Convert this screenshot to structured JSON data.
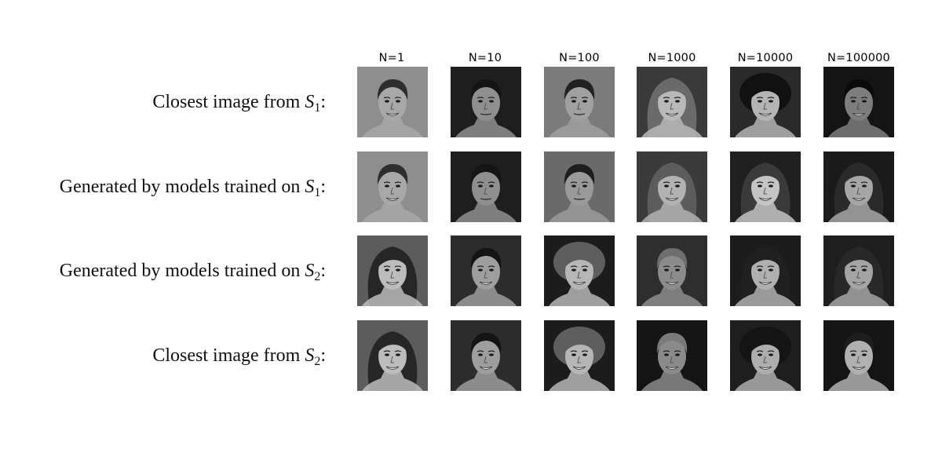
{
  "columns": [
    "N=1",
    "N=10",
    "N=100",
    "N=1000",
    "N=10000",
    "N=100000"
  ],
  "rows": [
    {
      "label": "Closest image from ",
      "set": "S",
      "sub": "1",
      "suffix": ":"
    },
    {
      "label": "Generated by models trained on ",
      "set": "S",
      "sub": "1",
      "suffix": ":"
    },
    {
      "label": "Generated by models trained on ",
      "set": "S",
      "sub": "2",
      "suffix": ":"
    },
    {
      "label": "Closest image from ",
      "set": "S",
      "sub": "2",
      "suffix": ":"
    }
  ],
  "faces": [
    [
      {
        "bg": "#8e8e8e",
        "hair": "#2e2e2e",
        "skin": "#a8a8a8",
        "hair_style": "short",
        "smile": true,
        "icon": "face-portrait-icon"
      },
      {
        "bg": "#1e1e1e",
        "hair": "#151515",
        "skin": "#8f8f8f",
        "hair_style": "short",
        "smile": false,
        "icon": "face-portrait-icon"
      },
      {
        "bg": "#7b7b7b",
        "hair": "#222222",
        "skin": "#a0a0a0",
        "hair_style": "short",
        "smile": false,
        "icon": "face-portrait-icon"
      },
      {
        "bg": "#3a3a3a",
        "hair": "#6a6a6a",
        "skin": "#b9b9b9",
        "hair_style": "long",
        "smile": true,
        "icon": "face-portrait-icon"
      },
      {
        "bg": "#2a2a2a",
        "hair": "#111111",
        "skin": "#b4b4b4",
        "hair_style": "curly",
        "smile": true,
        "icon": "face-portrait-icon"
      },
      {
        "bg": "#141414",
        "hair": "#0a0a0a",
        "skin": "#7d7d7d",
        "hair_style": "short",
        "smile": true,
        "icon": "face-portrait-icon"
      }
    ],
    [
      {
        "bg": "#8e8e8e",
        "hair": "#2e2e2e",
        "skin": "#a8a8a8",
        "hair_style": "short",
        "smile": true,
        "icon": "face-portrait-icon"
      },
      {
        "bg": "#1e1e1e",
        "hair": "#151515",
        "skin": "#8f8f8f",
        "hair_style": "short",
        "smile": false,
        "icon": "face-portrait-icon"
      },
      {
        "bg": "#6a6a6a",
        "hair": "#1e1e1e",
        "skin": "#9a9a9a",
        "hair_style": "short",
        "smile": false,
        "icon": "face-portrait-icon"
      },
      {
        "bg": "#3a3a3a",
        "hair": "#5c5c5c",
        "skin": "#b2b2b2",
        "hair_style": "long",
        "smile": true,
        "icon": "face-portrait-icon"
      },
      {
        "bg": "#202020",
        "hair": "#3a3a3a",
        "skin": "#c4c4c4",
        "hair_style": "long",
        "smile": true,
        "icon": "face-portrait-icon"
      },
      {
        "bg": "#1a1a1a",
        "hair": "#2a2a2a",
        "skin": "#a6a6a6",
        "hair_style": "long",
        "smile": true,
        "icon": "face-portrait-icon"
      }
    ],
    [
      {
        "bg": "#5c5c5c",
        "hair": "#262626",
        "skin": "#bcbcbc",
        "hair_style": "long",
        "smile": true,
        "icon": "face-portrait-icon"
      },
      {
        "bg": "#2c2c2c",
        "hair": "#141414",
        "skin": "#9e9e9e",
        "hair_style": "short",
        "smile": true,
        "icon": "face-portrait-icon"
      },
      {
        "bg": "#1c1c1c",
        "hair": "#5e5e5e",
        "skin": "#b6b6b6",
        "hair_style": "curly",
        "smile": true,
        "icon": "face-portrait-icon"
      },
      {
        "bg": "#2e2e2e",
        "hair": "#6e6e6e",
        "skin": "#8c8c8c",
        "hair_style": "short",
        "smile": true,
        "icon": "face-portrait-icon"
      },
      {
        "bg": "#1c1c1c",
        "hair": "#202020",
        "skin": "#b0b0b0",
        "hair_style": "long",
        "smile": true,
        "icon": "face-portrait-icon"
      },
      {
        "bg": "#1e1e1e",
        "hair": "#282828",
        "skin": "#a4a4a4",
        "hair_style": "long",
        "smile": true,
        "icon": "face-portrait-icon"
      }
    ],
    [
      {
        "bg": "#5c5c5c",
        "hair": "#262626",
        "skin": "#bcbcbc",
        "hair_style": "long",
        "smile": true,
        "icon": "face-portrait-icon"
      },
      {
        "bg": "#2c2c2c",
        "hair": "#141414",
        "skin": "#9e9e9e",
        "hair_style": "short",
        "smile": true,
        "icon": "face-portrait-icon"
      },
      {
        "bg": "#1c1c1c",
        "hair": "#5e5e5e",
        "skin": "#b6b6b6",
        "hair_style": "curly",
        "smile": true,
        "icon": "face-portrait-icon"
      },
      {
        "bg": "#141414",
        "hair": "#7a7a7a",
        "skin": "#8a8a8a",
        "hair_style": "short",
        "smile": true,
        "icon": "face-portrait-icon"
      },
      {
        "bg": "#1e1e1e",
        "hair": "#141414",
        "skin": "#aeaeae",
        "hair_style": "curly",
        "smile": true,
        "icon": "face-portrait-icon"
      },
      {
        "bg": "#141414",
        "hair": "#1e1e1e",
        "skin": "#b0b0b0",
        "hair_style": "short",
        "smile": true,
        "icon": "face-portrait-icon"
      }
    ]
  ]
}
